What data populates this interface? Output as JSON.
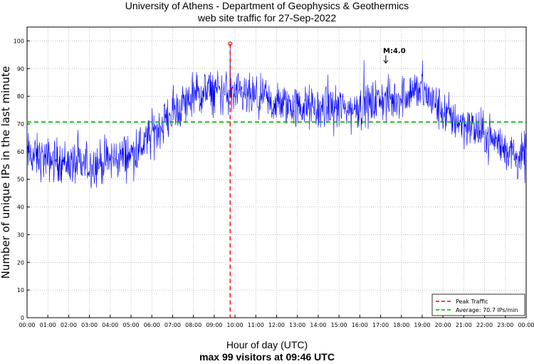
{
  "chart_data": {
    "type": "line",
    "title_lines": [
      "University of Athens - Department of Geophysics & Geothermics",
      "web site traffic for 27-Sep-2022"
    ],
    "xlabel": "Hour of day (UTC)",
    "subtitle": "max 99 visitors at 09:46 UTC",
    "ylabel": "Number of unique IPs in the last minute",
    "xlim": [
      0,
      24
    ],
    "ylim": [
      0,
      105
    ],
    "yticks": [
      0,
      10,
      20,
      30,
      40,
      50,
      60,
      70,
      80,
      90,
      100
    ],
    "xtick_labels": [
      "00:00",
      "01:00",
      "02:00",
      "03:00",
      "04:00",
      "05:00",
      "06:00",
      "07:00",
      "08:00",
      "09:00",
      "10:00",
      "11:00",
      "12:00",
      "13:00",
      "14:00",
      "15:00",
      "16:00",
      "17:00",
      "18:00",
      "19:00",
      "20:00",
      "21:00",
      "22:00",
      "23:00",
      "00:00"
    ],
    "grid": true,
    "series": [
      {
        "name": "Traffic",
        "color": "#0000ff",
        "x_hours_smoothed": [
          0,
          0.5,
          1,
          1.5,
          2,
          2.5,
          3,
          3.5,
          4,
          4.5,
          5,
          5.5,
          6,
          6.5,
          7,
          7.5,
          8,
          8.5,
          9,
          9.5,
          10,
          10.5,
          11,
          11.5,
          12,
          12.5,
          13,
          13.5,
          14,
          14.5,
          15,
          15.5,
          16,
          16.5,
          17,
          17.5,
          18,
          18.5,
          19,
          19.5,
          20,
          20.5,
          21,
          21.5,
          22,
          22.5,
          23,
          23.5,
          24
        ],
        "y_smoothed": [
          59,
          58,
          57,
          57,
          56,
          55,
          55,
          56,
          57,
          58,
          59,
          62,
          66,
          70,
          74,
          77,
          80,
          81,
          82,
          81,
          80,
          80,
          79,
          78,
          77,
          77,
          76,
          76,
          75,
          76,
          76,
          75,
          76,
          77,
          79,
          78,
          80,
          82,
          82,
          78,
          74,
          72,
          70,
          68,
          66,
          64,
          61,
          58,
          57
        ],
        "noise_amplitude": 6
      }
    ],
    "peak": {
      "label": "Peak Traffic",
      "time": "09:46",
      "x_hour": 9.767,
      "value": 99,
      "color": "#ff0000"
    },
    "average": {
      "label": "Average: 70.7 IPs/min",
      "value": 70.7,
      "color": "#00aa00"
    },
    "annotation": {
      "text": "M:4.0",
      "x_hour": 17.25,
      "y": 92
    },
    "legend": {
      "placement": "bottom-right",
      "entries": [
        "Peak Traffic",
        "Average: 70.7 IPs/min"
      ]
    }
  }
}
